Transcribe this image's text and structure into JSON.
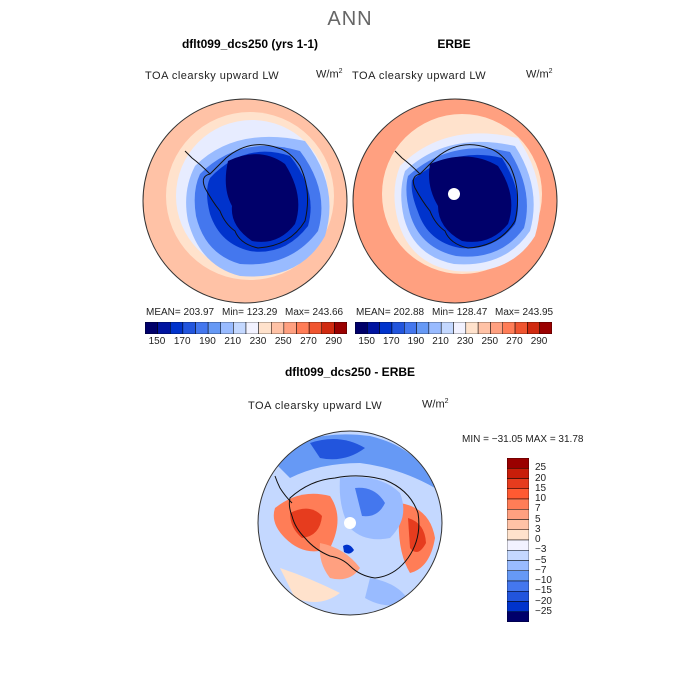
{
  "header": {
    "title": "ANN"
  },
  "panels": [
    {
      "title": "dflt099_dcs250 (yrs 1-1)",
      "var_label": "TOA clearsky upward LW",
      "unit_base": "W/m",
      "unit_exp": "2",
      "stats": {
        "mean": "MEAN= 203.97",
        "min": "Min= 123.29",
        "max": "Max= 243.66"
      }
    },
    {
      "title": "ERBE",
      "var_label": "TOA clearsky upward LW",
      "unit_base": "W/m",
      "unit_exp": "2",
      "stats": {
        "mean": "MEAN= 202.88",
        "min": "Min= 128.47",
        "max": "Max= 243.95"
      }
    }
  ],
  "diff_panel": {
    "title": "dflt099_dcs250 - ERBE",
    "var_label": "TOA clearsky upward LW",
    "unit_base": "W/m",
    "unit_exp": "2",
    "minmax": "MIN = −31.05 MAX =  31.78"
  },
  "chart_data": [
    {
      "type": "heatmap",
      "title": "dflt099_dcs250 (yrs 1-1)",
      "projection": "south polar stereographic",
      "colorbar": {
        "labels": [
          "150",
          "170",
          "190",
          "210",
          "230",
          "250",
          "270",
          "290"
        ],
        "colors": [
          "#00006a",
          "#0014a0",
          "#0033cc",
          "#2255dd",
          "#4477ee",
          "#6699f5",
          "#99bbff",
          "#c4d8ff",
          "#f2f2ff",
          "#ffe2cc",
          "#ffc2a6",
          "#ffa080",
          "#ff7d57",
          "#f05530",
          "#d02a10",
          "#9a0000"
        ]
      },
      "field": {
        "continent": "#00006a",
        "coast": "#0033cc",
        "ring1": "#4477ee",
        "ring2": "#99bbff",
        "ring3": "#e7ecff",
        "ring4": "#ffe2cc",
        "outer": "#ffc2a6"
      }
    },
    {
      "type": "heatmap",
      "title": "ERBE",
      "projection": "south polar stereographic",
      "pole_missing": true,
      "colorbar": {
        "labels": [
          "150",
          "170",
          "190",
          "210",
          "230",
          "250",
          "270",
          "290"
        ],
        "colors": [
          "#00006a",
          "#0014a0",
          "#0033cc",
          "#2255dd",
          "#4477ee",
          "#6699f5",
          "#99bbff",
          "#c4d8ff",
          "#f2f2ff",
          "#ffe2cc",
          "#ffc2a6",
          "#ffa080",
          "#ff7d57",
          "#f05530",
          "#d02a10",
          "#9a0000"
        ]
      },
      "field": {
        "continent": "#00006a",
        "coast": "#0033cc",
        "ring1": "#4477ee",
        "ring2": "#99bbff",
        "ring3": "#e7ecff",
        "ring4": "#ffe2cc",
        "outer": "#ffa080"
      }
    },
    {
      "type": "heatmap",
      "title": "dflt099_dcs250 - ERBE",
      "projection": "south polar stereographic",
      "pole_missing": true,
      "colorbar": {
        "labels": [
          "25",
          "20",
          "15",
          "10",
          "7",
          "5",
          "3",
          "0",
          "−3",
          "−5",
          "−7",
          "−10",
          "−15",
          "−20",
          "−25"
        ],
        "colors": [
          "#9a0000",
          "#c81e0a",
          "#e63c1e",
          "#ff5a32",
          "#ff7d57",
          "#ffa080",
          "#ffc2a6",
          "#ffe2cc",
          "#f2f2ff",
          "#c4d8ff",
          "#99bbff",
          "#6699f5",
          "#4477ee",
          "#2255dd",
          "#0033cc",
          "#00006a"
        ]
      }
    }
  ]
}
